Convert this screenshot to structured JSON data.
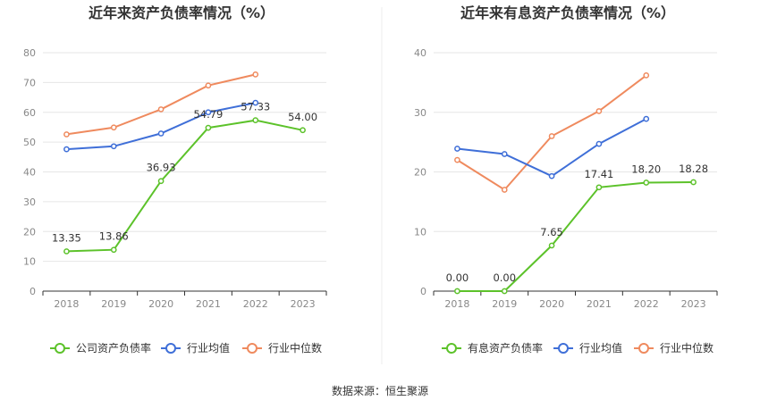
{
  "source": "数据来源：恒生聚源",
  "colors": {
    "company": "#5cc22a",
    "industry_avg": "#3f6fd8",
    "industry_median": "#ef8a5e",
    "grid": "#e6e6e6",
    "axis": "#333333"
  },
  "chart_data": [
    {
      "type": "line",
      "title": "近年来资产负债率情况（%）",
      "categories": [
        "2018",
        "2019",
        "2020",
        "2021",
        "2022",
        "2023"
      ],
      "ylim": [
        0,
        80
      ],
      "yticks": [
        0,
        10,
        20,
        30,
        40,
        50,
        60,
        70,
        80
      ],
      "grid": true,
      "legend_position": "bottom",
      "series": [
        {
          "name": "公司资产负债率",
          "color": "#5cc22a",
          "labeled": true,
          "values": [
            13.35,
            13.86,
            36.93,
            54.79,
            57.33,
            54.0
          ],
          "labels": [
            "13.35",
            "13.86",
            "36.93",
            "54.79",
            "57.33",
            "54.00"
          ]
        },
        {
          "name": "行业均值",
          "color": "#3f6fd8",
          "labeled": false,
          "values": [
            47.6,
            48.6,
            52.9,
            60.0,
            63.2,
            null
          ]
        },
        {
          "name": "行业中位数",
          "color": "#ef8a5e",
          "labeled": false,
          "values": [
            52.6,
            54.9,
            61.0,
            69.0,
            72.7,
            null
          ]
        }
      ]
    },
    {
      "type": "line",
      "title": "近年来有息资产负债率情况（%）",
      "categories": [
        "2018",
        "2019",
        "2020",
        "2021",
        "2022",
        "2023"
      ],
      "ylim": [
        0,
        40
      ],
      "yticks": [
        0,
        10,
        20,
        30,
        40
      ],
      "grid": true,
      "legend_position": "bottom",
      "series": [
        {
          "name": "有息资产负债率",
          "color": "#5cc22a",
          "labeled": true,
          "values": [
            0.0,
            0.0,
            7.65,
            17.41,
            18.2,
            18.28
          ],
          "labels": [
            "0.00",
            "0.00",
            "7.65",
            "17.41",
            "18.20",
            "18.28"
          ]
        },
        {
          "name": "行业均值",
          "color": "#3f6fd8",
          "labeled": false,
          "values": [
            23.9,
            23.0,
            19.3,
            24.7,
            28.9,
            null
          ]
        },
        {
          "name": "行业中位数",
          "color": "#ef8a5e",
          "labeled": false,
          "values": [
            22.0,
            17.0,
            26.0,
            30.2,
            36.2,
            null
          ]
        }
      ]
    }
  ]
}
